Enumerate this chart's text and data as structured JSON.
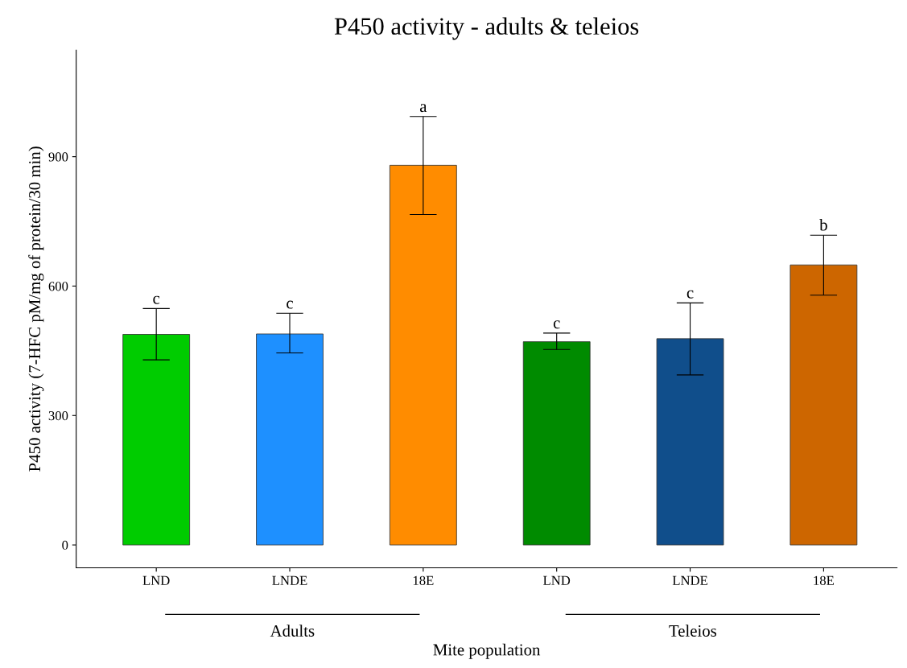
{
  "chart_data": {
    "type": "bar",
    "title": "P450 activity - adults & teleios",
    "xlabel": "Mite population",
    "ylabel": "P450 activity (7-HFC pM/mg of protein/30 min)",
    "categories": [
      "LND",
      "LNDE",
      "18E",
      "LND",
      "LNDE",
      "18E"
    ],
    "values": [
      488,
      489,
      880,
      471,
      478,
      649
    ],
    "colors": [
      "#00cc00",
      "#1e90ff",
      "#ff8c00",
      "#008b00",
      "#104e8b",
      "#cd6600"
    ],
    "errors": [
      [
        429,
        548
      ],
      [
        445,
        537
      ],
      [
        766,
        993
      ],
      [
        453,
        491
      ],
      [
        394,
        561
      ],
      [
        579,
        718
      ]
    ],
    "value_labels": [
      "c",
      "c",
      "a",
      "c",
      "c",
      "b"
    ],
    "annotations": [
      "Adults",
      "Teleios"
    ],
    "ylim": [
      -53,
      1147
    ],
    "yticks": [
      0,
      300,
      600,
      900
    ],
    "grid": false,
    "legend": false
  }
}
